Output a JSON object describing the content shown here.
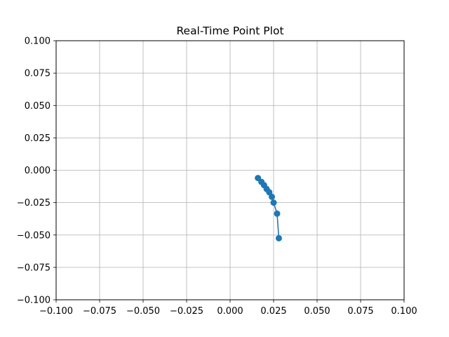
{
  "chart_data": {
    "type": "line",
    "title": "Real-Time Point Plot",
    "xlabel": "",
    "ylabel": "",
    "xlim": [
      -0.1,
      0.1
    ],
    "ylim": [
      -0.1,
      0.1
    ],
    "grid": true,
    "x_ticks": [
      -0.1,
      -0.075,
      -0.05,
      -0.025,
      0.0,
      0.025,
      0.05,
      0.075,
      0.1
    ],
    "y_ticks": [
      -0.1,
      -0.075,
      -0.05,
      -0.025,
      0.0,
      0.025,
      0.05,
      0.075,
      0.1
    ],
    "x_tick_labels": [
      "−0.100",
      "−0.075",
      "−0.050",
      "−0.025",
      "0.000",
      "0.025",
      "0.050",
      "0.075",
      "0.100"
    ],
    "y_tick_labels": [
      "−0.100",
      "−0.075",
      "−0.050",
      "−0.025",
      "0.000",
      "0.025",
      "0.050",
      "0.075",
      "0.100"
    ],
    "series": [
      {
        "color": "#1f77b4",
        "marker": "circle",
        "points": [
          {
            "x": 0.016,
            "y": -0.006
          },
          {
            "x": 0.018,
            "y": -0.009
          },
          {
            "x": 0.0195,
            "y": -0.0115
          },
          {
            "x": 0.021,
            "y": -0.0145
          },
          {
            "x": 0.0225,
            "y": -0.017
          },
          {
            "x": 0.024,
            "y": -0.0205
          },
          {
            "x": 0.025,
            "y": -0.025
          },
          {
            "x": 0.027,
            "y": -0.0335
          },
          {
            "x": 0.028,
            "y": -0.0525
          }
        ]
      }
    ]
  }
}
